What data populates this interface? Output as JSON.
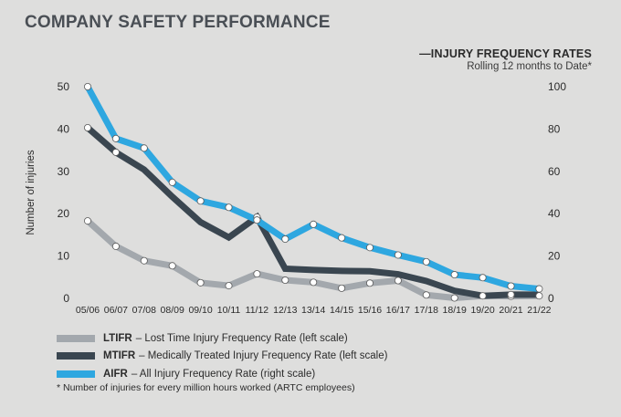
{
  "page_title": "COMPANY SAFETY PERFORMANCE",
  "header": {
    "title": "—INJURY FREQUENCY RATES",
    "subtitle": "Rolling 12 months to Date*"
  },
  "legend": [
    {
      "code": "LTIFR",
      "text": "– Lost Time Injury Frequency Rate (left scale)",
      "color": "#a3a8ad"
    },
    {
      "code": "MTIFR",
      "text": "– Medically Treated Injury Frequency Rate (left scale)",
      "color": "#3a4650"
    },
    {
      "code": "AIFR",
      "text": "– All Injury Frequency Rate (right scale)",
      "color": "#2ea7e0"
    }
  ],
  "footnote": "*  Number of injuries for every million hours worked (ARTC employees)",
  "chart_data": {
    "type": "line",
    "categories": [
      "05/06",
      "06/07",
      "07/08",
      "08/09",
      "09/10",
      "10/11",
      "11/12",
      "12/13",
      "13/14",
      "14/15",
      "15/16",
      "16/17",
      "17/18",
      "18/19",
      "19/20",
      "20/21",
      "21/22"
    ],
    "ylabel": "Number of injuries",
    "ylim": [
      0,
      50
    ],
    "yticks": [
      0,
      10,
      20,
      30,
      40,
      50
    ],
    "y2lim": [
      0,
      100
    ],
    "y2ticks": [
      0,
      20,
      40,
      60,
      80,
      100
    ],
    "series": [
      {
        "name": "LTIFR",
        "axis": "left",
        "color": "#a3a8ad",
        "values": [
          18.3,
          12.3,
          8.9,
          7.7,
          3.7,
          3.0,
          5.8,
          4.3,
          3.8,
          2.4,
          3.6,
          4.2,
          0.8,
          0.1,
          0.6,
          0.5,
          0.6
        ],
        "markers": [
          true,
          true,
          true,
          true,
          true,
          true,
          true,
          true,
          true,
          true,
          true,
          true,
          true,
          true,
          true,
          true,
          true
        ]
      },
      {
        "name": "MTIFR",
        "axis": "left",
        "color": "#3a4650",
        "values": [
          40.3,
          34.5,
          30.4,
          24.0,
          18.0,
          14.4,
          19.2,
          7.0,
          6.7,
          6.5,
          6.4,
          5.7,
          4.1,
          1.8,
          0.6,
          0.9,
          0.9
        ],
        "markers": [
          true,
          true,
          false,
          false,
          false,
          false,
          true,
          false,
          false,
          false,
          false,
          false,
          false,
          false,
          false,
          true,
          false
        ]
      },
      {
        "name": "AIFR",
        "axis": "right",
        "color": "#2ea7e0",
        "values": [
          100,
          75.5,
          71,
          54.8,
          46,
          43,
          37,
          28,
          35,
          28.6,
          24,
          20.5,
          17.3,
          11.2,
          9.8,
          5.8,
          4.5
        ],
        "markers": [
          true,
          true,
          true,
          true,
          true,
          true,
          true,
          true,
          true,
          true,
          true,
          true,
          true,
          true,
          true,
          true,
          true
        ]
      }
    ]
  }
}
